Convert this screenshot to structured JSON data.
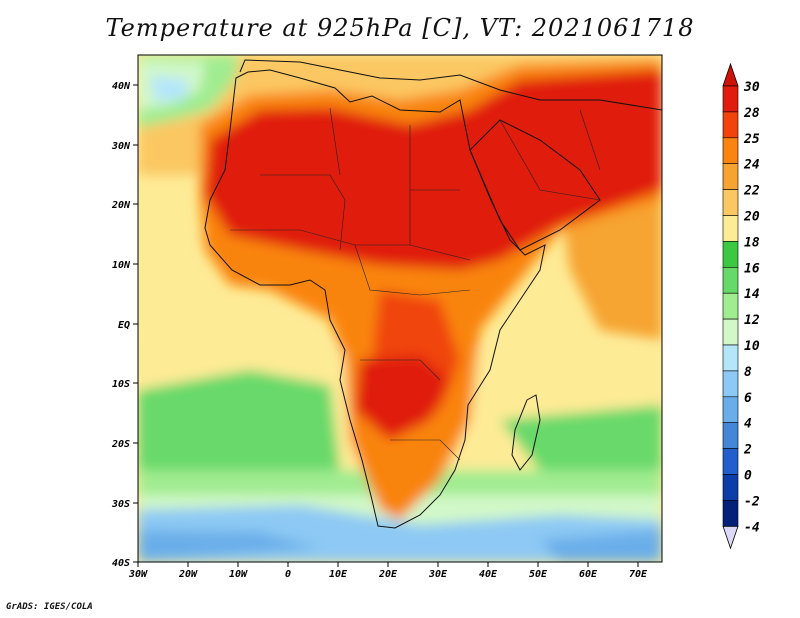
{
  "title": "Temperature at 925hPa [C], VT: 2021061718",
  "credit": "GrADS: IGES/COLA",
  "map": {
    "lon_range": [
      -30,
      75
    ],
    "lat_range": [
      -40,
      45
    ],
    "x_ticks": [
      "30W",
      "20W",
      "10W",
      "0",
      "10E",
      "20E",
      "30E",
      "40E",
      "50E",
      "60E",
      "70E"
    ],
    "y_ticks": [
      "40N",
      "30N",
      "20N",
      "10N",
      "EQ",
      "10S",
      "20S",
      "30S",
      "40S"
    ]
  },
  "colorbar": {
    "labels": [
      "30",
      "28",
      "25",
      "24",
      "22",
      "20",
      "18",
      "16",
      "14",
      "12",
      "10",
      "8",
      "6",
      "4",
      "2",
      "0",
      "-2",
      "-4"
    ],
    "colors": [
      "#e01c0e",
      "#f0440c",
      "#f98410",
      "#f6a431",
      "#fbc762",
      "#feeb96",
      "#3dc842",
      "#67d96a",
      "#a0ec90",
      "#d2f8c8",
      "#b4e6fa",
      "#8dc9f4",
      "#6aaee9",
      "#4586d9",
      "#235fcc",
      "#0d3da9",
      "#04217a"
    ],
    "top_arrow_color": "#cf1208",
    "bottom_arrow_color": "#dcd8f8"
  }
}
